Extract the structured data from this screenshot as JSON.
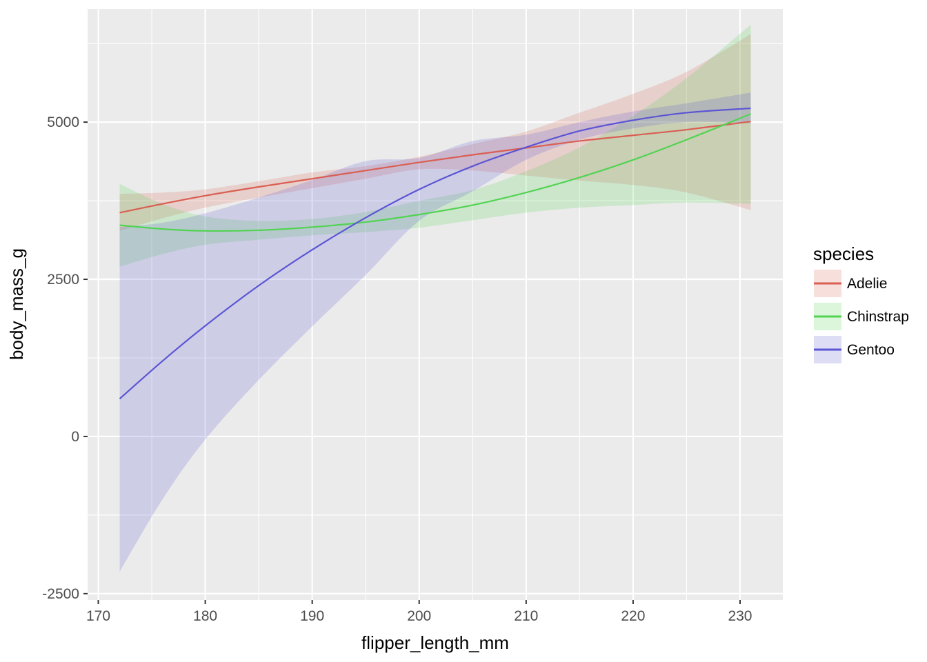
{
  "chart_data": {
    "type": "line",
    "xlabel": "flipper_length_mm",
    "ylabel": "body_mass_g",
    "xlim": [
      169,
      234
    ],
    "ylim": [
      -2600,
      6800
    ],
    "x_ticks": [
      170,
      180,
      190,
      200,
      210,
      220,
      230
    ],
    "y_ticks": [
      -2500,
      0,
      2500,
      5000
    ],
    "grid": true,
    "legend": {
      "title": "species",
      "position": "right"
    },
    "x": [
      172,
      176,
      180,
      185,
      190,
      195,
      200,
      205,
      210,
      215,
      220,
      225,
      231
    ],
    "series": [
      {
        "name": "Adelie",
        "color": "#d95f52",
        "values": [
          3560,
          3700,
          3830,
          3970,
          4100,
          4230,
          4360,
          4480,
          4590,
          4700,
          4790,
          4880,
          5010
        ],
        "lower": [
          3270,
          3470,
          3640,
          3800,
          3950,
          4100,
          4250,
          4230,
          4150,
          4070,
          4000,
          3880,
          3600
        ],
        "upper": [
          3860,
          3880,
          3930,
          4060,
          4200,
          4300,
          4450,
          4650,
          4850,
          5150,
          5450,
          5800,
          6400
        ]
      },
      {
        "name": "Chinstrap",
        "color": "#52d352",
        "values": [
          3360,
          3300,
          3270,
          3280,
          3330,
          3410,
          3530,
          3680,
          3880,
          4120,
          4400,
          4720,
          5130
        ],
        "lower": [
          2700,
          2900,
          3050,
          3130,
          3200,
          3250,
          3320,
          3440,
          3560,
          3640,
          3680,
          3720,
          3700
        ],
        "upper": [
          4020,
          3700,
          3500,
          3430,
          3460,
          3570,
          3750,
          3920,
          4220,
          4600,
          5100,
          5700,
          6550
        ]
      },
      {
        "name": "Gentoo",
        "color": "#5b55d4",
        "values": [
          600,
          1200,
          1760,
          2400,
          2970,
          3480,
          3930,
          4300,
          4600,
          4860,
          5030,
          5150,
          5220
        ],
        "lower": [
          -2150,
          -1000,
          -50,
          900,
          1750,
          2570,
          3430,
          3900,
          4400,
          4720,
          4900,
          5000,
          4980
        ],
        "upper": [
          3330,
          3400,
          3550,
          3800,
          4080,
          4380,
          4430,
          4700,
          4800,
          5000,
          5170,
          5300,
          5470
        ]
      }
    ]
  }
}
